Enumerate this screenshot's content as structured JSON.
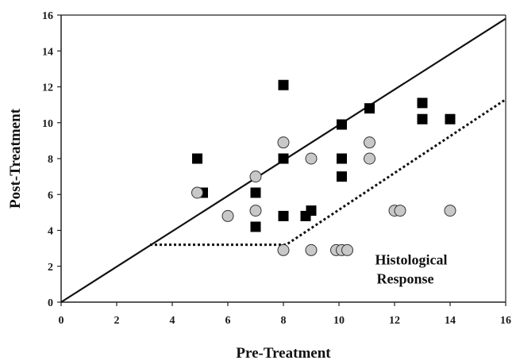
{
  "chart_data": {
    "type": "scatter",
    "title": "",
    "xlabel": "Pre-Treatment",
    "ylabel": "Post-Treatment",
    "xlim": [
      0,
      16
    ],
    "ylim": [
      0,
      16
    ],
    "xticks": [
      0,
      2,
      4,
      6,
      8,
      10,
      12,
      14,
      16
    ],
    "yticks": [
      0,
      2,
      4,
      6,
      8,
      10,
      12,
      14,
      16
    ],
    "grid": false,
    "legend": "none",
    "series": [
      {
        "marker": "square",
        "color": "#000000",
        "points": [
          {
            "x": 4.9,
            "y": 8.0
          },
          {
            "x": 5.1,
            "y": 6.1
          },
          {
            "x": 7.0,
            "y": 6.1
          },
          {
            "x": 7.0,
            "y": 4.2
          },
          {
            "x": 8.0,
            "y": 12.1
          },
          {
            "x": 8.0,
            "y": 8.0
          },
          {
            "x": 8.0,
            "y": 4.8
          },
          {
            "x": 8.8,
            "y": 4.8
          },
          {
            "x": 9.0,
            "y": 5.1
          },
          {
            "x": 10.1,
            "y": 9.9
          },
          {
            "x": 10.1,
            "y": 8.0
          },
          {
            "x": 10.1,
            "y": 7.0
          },
          {
            "x": 11.1,
            "y": 10.8
          },
          {
            "x": 13.0,
            "y": 11.1
          },
          {
            "x": 13.0,
            "y": 10.2
          },
          {
            "x": 14.0,
            "y": 10.2
          }
        ]
      },
      {
        "marker": "circle",
        "color": "#c8c8c8",
        "points": [
          {
            "x": 4.9,
            "y": 6.1
          },
          {
            "x": 6.0,
            "y": 4.8
          },
          {
            "x": 7.0,
            "y": 7.0
          },
          {
            "x": 7.0,
            "y": 5.1
          },
          {
            "x": 8.0,
            "y": 8.9
          },
          {
            "x": 8.0,
            "y": 2.9
          },
          {
            "x": 9.0,
            "y": 8.0
          },
          {
            "x": 9.0,
            "y": 2.9
          },
          {
            "x": 9.9,
            "y": 2.9
          },
          {
            "x": 10.1,
            "y": 2.9
          },
          {
            "x": 10.3,
            "y": 2.9
          },
          {
            "x": 11.1,
            "y": 8.9
          },
          {
            "x": 11.1,
            "y": 8.0
          },
          {
            "x": 12.0,
            "y": 5.1
          },
          {
            "x": 12.2,
            "y": 5.1
          },
          {
            "x": 14.0,
            "y": 5.1
          }
        ]
      }
    ],
    "lines": [
      {
        "style": "solid",
        "points": [
          [
            0,
            0
          ],
          [
            16,
            15.8
          ]
        ]
      },
      {
        "style": "dotted",
        "points": [
          [
            3.2,
            3.2
          ],
          [
            8.1,
            3.2
          ],
          [
            16,
            11.3
          ]
        ]
      }
    ],
    "annotations": [
      {
        "lines": [
          "Histological",
          "Response"
        ],
        "x": 11.3,
        "y": 2.1
      }
    ]
  }
}
